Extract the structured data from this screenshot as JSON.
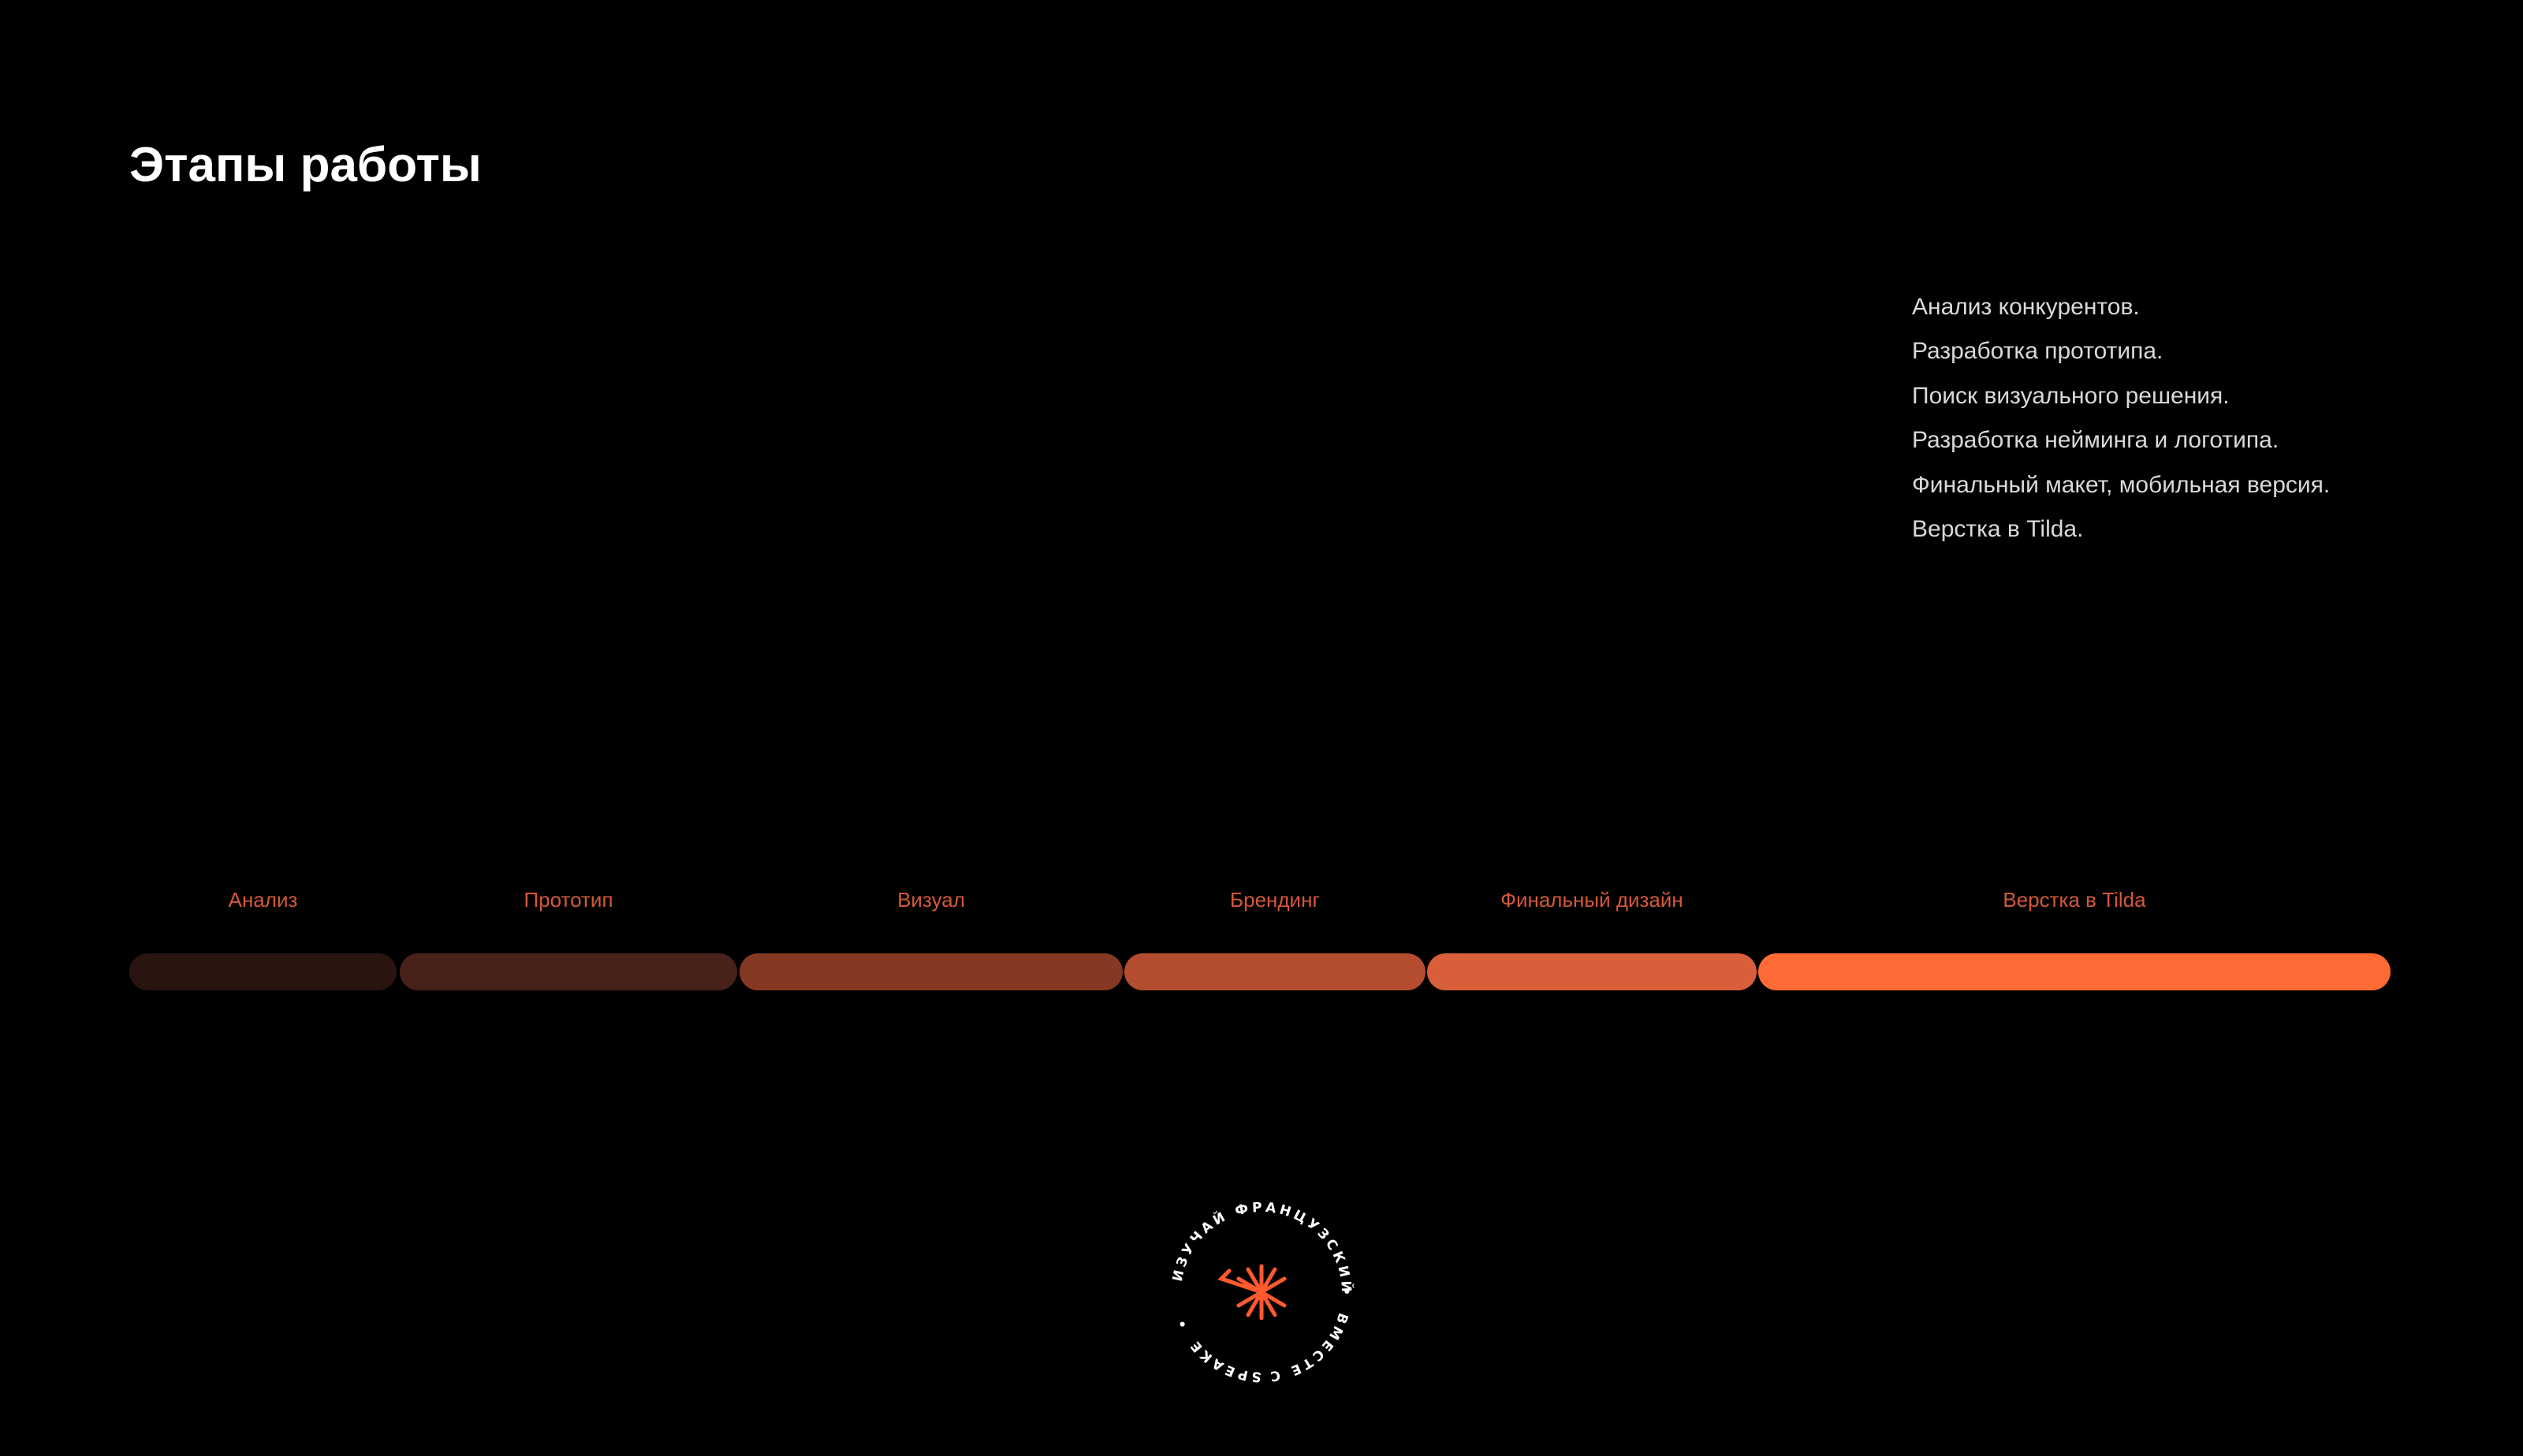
{
  "page": {
    "title": "Этапы работы"
  },
  "steps": [
    "Анализ конкурентов.",
    "Разработка прототипа.",
    "Поиск визуального решения.",
    "Разработка нейминга и логотипа.",
    "Финальный макет, мобильная версия.",
    "Верстка в Tilda."
  ],
  "timeline": {
    "stages": [
      {
        "label": "Анализ",
        "color": "#2a140f",
        "label_color": "#d4583a"
      },
      {
        "label": "Прототип",
        "color": "#48211a",
        "label_color": "#d4583a"
      },
      {
        "label": "Визуал",
        "color": "#853922",
        "label_color": "#d4583a"
      },
      {
        "label": "Брендинг",
        "color": "#b44d2f",
        "label_color": "#d4583a"
      },
      {
        "label": "Финальный дизайн",
        "color": "#d85f39",
        "label_color": "#d4583a"
      },
      {
        "label": "Верстка в Tilda",
        "color": "#ff6a35",
        "label_color": "#d4583a"
      }
    ]
  },
  "badge": {
    "text_top": "ИЗУЧАЙ ФРАНЦУЗСКИЙ",
    "text_right": "ВМЕСТЕ С",
    "text_bottom": "SPEAKE",
    "separator": "•",
    "icon": "asterisk-arrow-icon",
    "accent_color": "#ff5a2e"
  }
}
